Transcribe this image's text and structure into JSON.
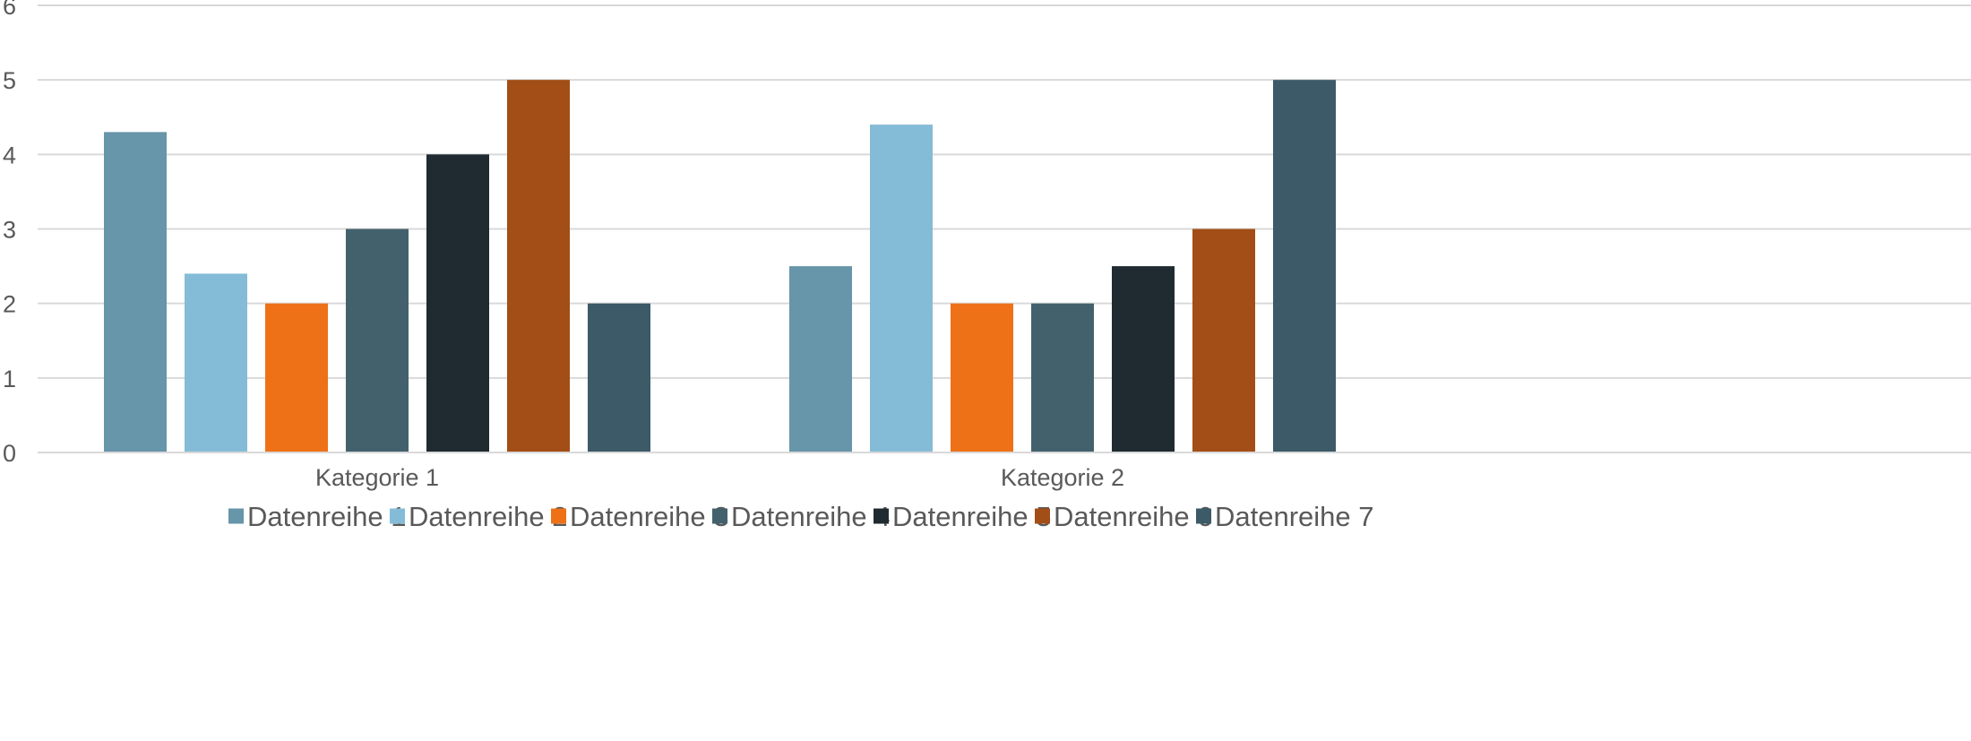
{
  "chart_data": {
    "type": "bar",
    "categories": [
      "Kategorie 1",
      "Kategorie 2"
    ],
    "series": [
      {
        "name": "Datenreihe 1",
        "color": "#6795A9",
        "values": [
          4.3,
          2.5
        ]
      },
      {
        "name": "Datenreihe 2",
        "color": "#84BCD7",
        "values": [
          2.4,
          4.4
        ]
      },
      {
        "name": "Datenreihe 3",
        "color": "#EE7118",
        "values": [
          2.0,
          2.0
        ]
      },
      {
        "name": "Datenreihe 4",
        "color": "#43616C",
        "values": [
          3.0,
          2.0
        ]
      },
      {
        "name": "Datenreihe 5",
        "color": "#1F2B31",
        "values": [
          4.0,
          2.5
        ]
      },
      {
        "name": "Datenreihe 6",
        "color": "#A24E16",
        "values": [
          5.0,
          3.0
        ]
      },
      {
        "name": "Datenreihe 7",
        "color": "#3C5A68",
        "values": [
          2.0,
          5.0
        ]
      }
    ],
    "ylim": [
      0,
      6
    ],
    "yticks": [
      "0",
      "1",
      "2",
      "3",
      "4",
      "5",
      "6"
    ],
    "grid": true,
    "legend_position": "bottom",
    "xlabel": "",
    "ylabel": ""
  }
}
